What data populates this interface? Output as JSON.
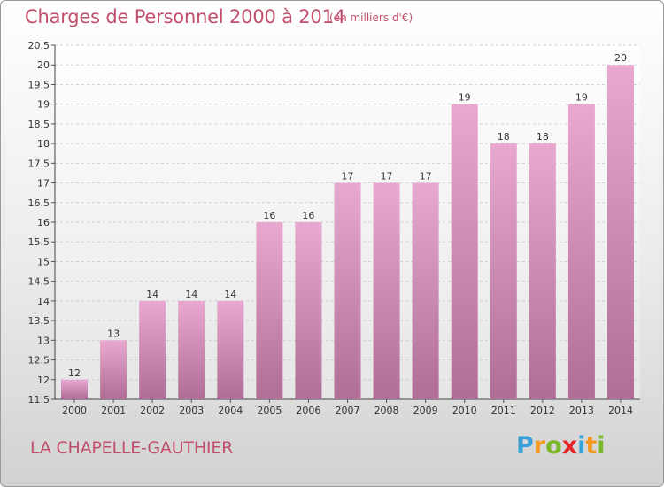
{
  "title": "Charges de Personnel 2000 à 2014",
  "subtitle": "(en milliers d'€)",
  "town": "LA CHAPELLE-GAUTHIER",
  "logo": {
    "letters": [
      "P",
      "r",
      "o",
      "x",
      "i",
      "t",
      "i"
    ],
    "colors": [
      "#3aa0d8",
      "#f39a1e",
      "#7ab829",
      "#e8252b",
      "#3aa0d8",
      "#f39a1e",
      "#7ab829"
    ]
  },
  "colors": {
    "bar_top": "#e8a8d0",
    "bar_bottom": "#b06e96",
    "text_accent": "#c0506c"
  },
  "chart_data": {
    "type": "bar",
    "categories": [
      "2000",
      "2001",
      "2002",
      "2003",
      "2004",
      "2005",
      "2006",
      "2007",
      "2008",
      "2009",
      "2010",
      "2011",
      "2012",
      "2013",
      "2014"
    ],
    "values": [
      12,
      13,
      14,
      14,
      14,
      16,
      16,
      17,
      17,
      17,
      19,
      18,
      18,
      19,
      20
    ],
    "data_labels": [
      "12",
      "13",
      "14",
      "14",
      "14",
      "16",
      "16",
      "17",
      "17",
      "17",
      "19",
      "18",
      "18",
      "19",
      "20"
    ],
    "ylim": [
      11.5,
      20.5
    ],
    "yticks": [
      11.5,
      12,
      12.5,
      13,
      13.5,
      14,
      14.5,
      15,
      15.5,
      16,
      16.5,
      17,
      17.5,
      18,
      18.5,
      19,
      19.5,
      20,
      20.5
    ],
    "ytick_labels": [
      "11.5",
      "12",
      "12.5",
      "13",
      "13.5",
      "14",
      "14.5",
      "15",
      "15.5",
      "16",
      "16.5",
      "17",
      "17.5",
      "18",
      "18.5",
      "19",
      "19.5",
      "20",
      "20.5"
    ],
    "grid": true,
    "xlabel": "",
    "ylabel": ""
  }
}
